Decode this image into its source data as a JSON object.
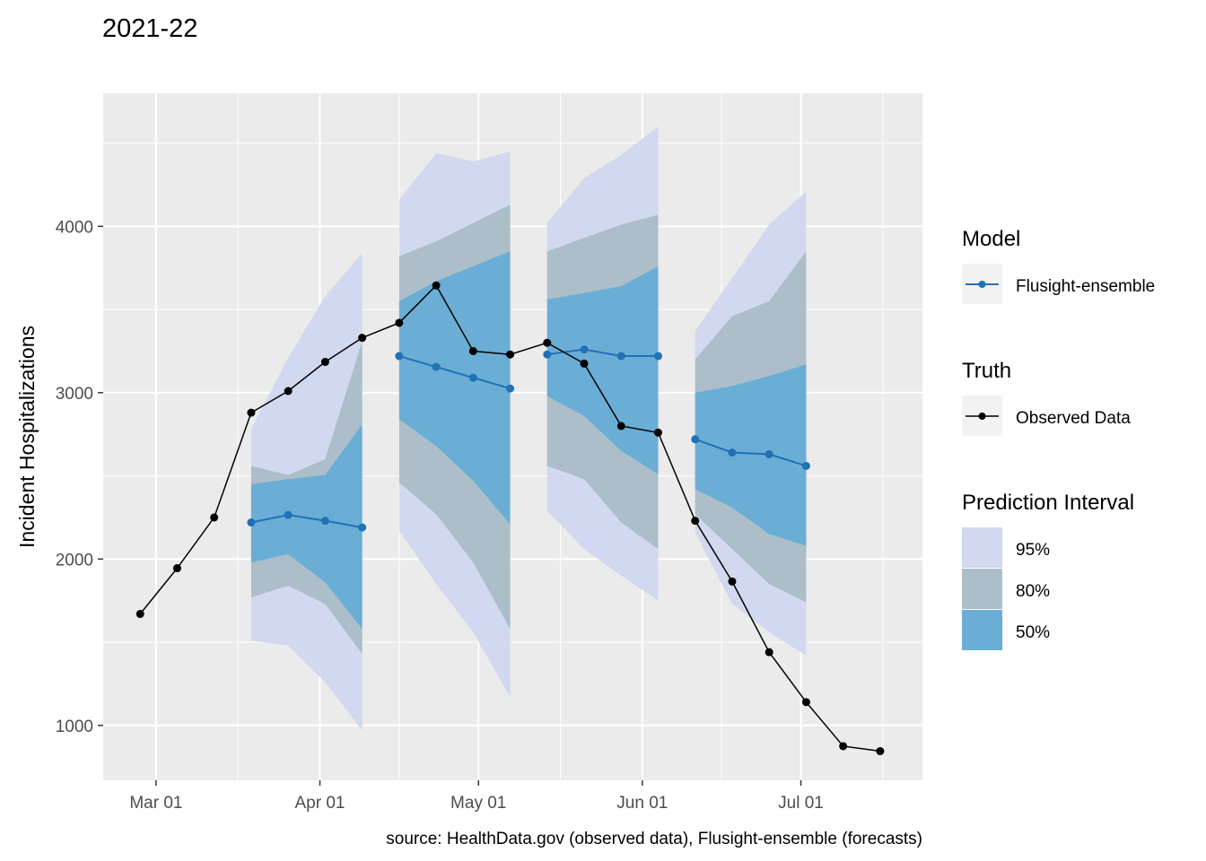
{
  "chart_data": {
    "type": "line",
    "title": "2021-22",
    "xlabel": "",
    "ylabel": "Incident Hospitalizations",
    "caption": "source: HealthData.gov (observed data), Flusight-ensemble (forecasts)",
    "x_ticks": [
      "Mar 01",
      "Apr 01",
      "May 01",
      "Jun 01",
      "Jul 01"
    ],
    "y_ticks": [
      1000,
      2000,
      3000,
      4000
    ],
    "xlim": [
      "2022-02-19",
      "2022-07-24"
    ],
    "ylim": [
      670,
      4800
    ],
    "grid": true,
    "legend_position": "right",
    "colors": {
      "panel": "#ebebeb",
      "grid": "#ffffff",
      "pi95": "#d1d8f0",
      "pi80": "#abbec9",
      "pi50": "#6aaed6",
      "model": "#2171b5",
      "truth": "#000000"
    },
    "truth": {
      "name": "Observed Data",
      "dates": [
        "2022-02-26",
        "2022-03-05",
        "2022-03-12",
        "2022-03-19",
        "2022-03-26",
        "2022-04-02",
        "2022-04-09",
        "2022-04-16",
        "2022-04-23",
        "2022-04-30",
        "2022-05-07",
        "2022-05-14",
        "2022-05-21",
        "2022-05-28",
        "2022-06-04",
        "2022-06-11",
        "2022-06-18",
        "2022-06-25",
        "2022-07-02",
        "2022-07-09",
        "2022-07-16"
      ],
      "values": [
        1670,
        1945,
        2250,
        2880,
        3010,
        3185,
        3330,
        3420,
        3645,
        3250,
        3230,
        3300,
        3175,
        2800,
        2760,
        2230,
        1865,
        1440,
        1140,
        875,
        845
      ]
    },
    "forecasts": [
      {
        "dates": [
          "2022-03-19",
          "2022-03-26",
          "2022-04-02",
          "2022-04-09"
        ],
        "median": [
          2220,
          2265,
          2230,
          2190
        ],
        "q025": [
          1510,
          1480,
          1260,
          970
        ],
        "q975": [
          2780,
          3210,
          3580,
          3840
        ],
        "q10": [
          1770,
          1840,
          1730,
          1430
        ],
        "q90": [
          2560,
          2505,
          2600,
          3310
        ],
        "q25": [
          1980,
          2030,
          1860,
          1580
        ],
        "q75": [
          2450,
          2480,
          2505,
          2810
        ]
      },
      {
        "dates": [
          "2022-04-16",
          "2022-04-23",
          "2022-04-30",
          "2022-05-07"
        ],
        "median": [
          3220,
          3155,
          3090,
          3025
        ],
        "q025": [
          2170,
          1850,
          1560,
          1170
        ],
        "q975": [
          4160,
          4440,
          4390,
          4450
        ],
        "q10": [
          2460,
          2270,
          1980,
          1580
        ],
        "q90": [
          3820,
          3910,
          4020,
          4130
        ],
        "q25": [
          2840,
          2680,
          2470,
          2210
        ],
        "q75": [
          3550,
          3670,
          3760,
          3850
        ]
      },
      {
        "dates": [
          "2022-05-14",
          "2022-05-21",
          "2022-05-28",
          "2022-06-04"
        ],
        "median": [
          3230,
          3260,
          3220,
          3220
        ],
        "q025": [
          2290,
          2060,
          1900,
          1750
        ],
        "q975": [
          4020,
          4290,
          4430,
          4600
        ],
        "q10": [
          2560,
          2480,
          2220,
          2060
        ],
        "q90": [
          3850,
          3930,
          4010,
          4070
        ],
        "q25": [
          2980,
          2860,
          2650,
          2510
        ],
        "q75": [
          3560,
          3600,
          3640,
          3760
        ]
      },
      {
        "dates": [
          "2022-06-11",
          "2022-06-18",
          "2022-06-25",
          "2022-07-02"
        ],
        "median": [
          2720,
          2640,
          2630,
          2560
        ],
        "q025": [
          2160,
          1730,
          1560,
          1420
        ],
        "q975": [
          3370,
          3690,
          4010,
          4210
        ],
        "q10": [
          2270,
          2060,
          1850,
          1740
        ],
        "q90": [
          3200,
          3460,
          3550,
          3850
        ],
        "q25": [
          2420,
          2310,
          2150,
          2080
        ],
        "q75": [
          3000,
          3040,
          3100,
          3170
        ]
      }
    ],
    "legend": {
      "model_title": "Model",
      "model_label": "Flusight-ensemble",
      "truth_title": "Truth",
      "truth_label": "Observed Data",
      "pi_title": "Prediction Interval",
      "pi_labels": [
        "95%",
        "80%",
        "50%"
      ]
    }
  }
}
